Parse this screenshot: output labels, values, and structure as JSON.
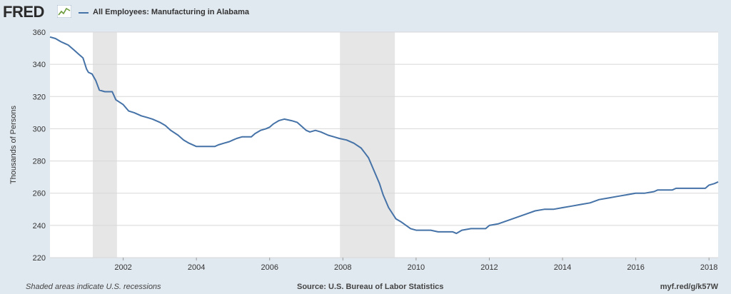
{
  "header": {
    "logo_text": "FRED",
    "logo_icon": "fred-graph-icon",
    "legend_label": "All Employees: Manufacturing in Alabama"
  },
  "footer": {
    "note": "Shaded areas indicate U.S. recessions",
    "source": "Source: U.S. Bureau of Labor Statistics",
    "url": "myf.red/g/k57W"
  },
  "colors": {
    "series": "#4572a7",
    "plot_bg": "#ffffff",
    "page_bg": "#e1e9f0",
    "recession": "#e6e6e6",
    "grid": "#d8d8d8"
  },
  "chart_data": {
    "type": "line",
    "title": "",
    "xlabel": "",
    "ylabel": "Thousands of Persons",
    "xlim": [
      2000.0,
      2018.25
    ],
    "ylim": [
      220,
      360
    ],
    "yticks": [
      220,
      240,
      260,
      280,
      300,
      320,
      340,
      360
    ],
    "xticks": [
      2002,
      2004,
      2006,
      2008,
      2010,
      2012,
      2014,
      2016,
      2018
    ],
    "grid": true,
    "recessions": [
      [
        2001.17,
        2001.83
      ],
      [
        2007.92,
        2009.42
      ]
    ],
    "series": [
      {
        "name": "All Employees: Manufacturing in Alabama",
        "x": [
          2000.0,
          2000.15,
          2000.3,
          2000.4,
          2000.5,
          2000.65,
          2000.8,
          2000.9,
          2001.0,
          2001.05,
          2001.15,
          2001.25,
          2001.35,
          2001.5,
          2001.7,
          2001.8,
          2002.0,
          2002.15,
          2002.3,
          2002.5,
          2002.65,
          2002.8,
          2003.0,
          2003.15,
          2003.3,
          2003.5,
          2003.65,
          2003.8,
          2004.0,
          2004.25,
          2004.5,
          2004.6,
          2004.75,
          2004.9,
          2005.0,
          2005.1,
          2005.25,
          2005.4,
          2005.5,
          2005.6,
          2005.75,
          2005.9,
          2006.0,
          2006.1,
          2006.25,
          2006.4,
          2006.6,
          2006.75,
          2006.85,
          2007.0,
          2007.1,
          2007.25,
          2007.4,
          2007.6,
          2007.75,
          2007.9,
          2008.1,
          2008.3,
          2008.5,
          2008.6,
          2008.7,
          2008.85,
          2009.0,
          2009.1,
          2009.25,
          2009.45,
          2009.6,
          2009.85,
          2010.0,
          2010.25,
          2010.4,
          2010.6,
          2010.85,
          2011.0,
          2011.1,
          2011.25,
          2011.5,
          2011.75,
          2011.9,
          2012.0,
          2012.25,
          2012.5,
          2012.75,
          2013.0,
          2013.25,
          2013.5,
          2013.75,
          2014.0,
          2014.25,
          2014.5,
          2014.75,
          2015.0,
          2015.25,
          2015.5,
          2015.75,
          2016.0,
          2016.25,
          2016.5,
          2016.6,
          2016.75,
          2017.0,
          2017.1,
          2017.25,
          2017.5,
          2017.75,
          2017.9,
          2018.0,
          2018.15,
          2018.25
        ],
        "values": [
          357,
          356,
          354,
          353,
          352,
          349,
          346,
          344,
          337,
          335,
          334,
          330,
          324,
          323,
          323,
          318,
          315,
          311,
          310,
          308,
          307,
          306,
          304,
          302,
          299,
          296,
          293,
          291,
          289,
          289,
          289,
          290,
          291,
          292,
          293,
          294,
          295,
          295,
          295,
          297,
          299,
          300,
          301,
          303,
          305,
          306,
          305,
          304,
          302,
          299,
          298,
          299,
          298,
          296,
          295,
          294,
          293,
          291,
          288,
          285,
          282,
          274,
          266,
          259,
          251,
          244,
          242,
          238,
          237,
          237,
          237,
          236,
          236,
          236,
          235,
          237,
          238,
          238,
          238,
          240,
          241,
          243,
          245,
          247,
          249,
          250,
          250,
          251,
          252,
          253,
          254,
          256,
          257,
          258,
          259,
          260,
          260,
          261,
          262,
          262,
          262,
          263,
          263,
          263,
          263,
          263,
          265,
          266,
          267
        ]
      }
    ]
  }
}
